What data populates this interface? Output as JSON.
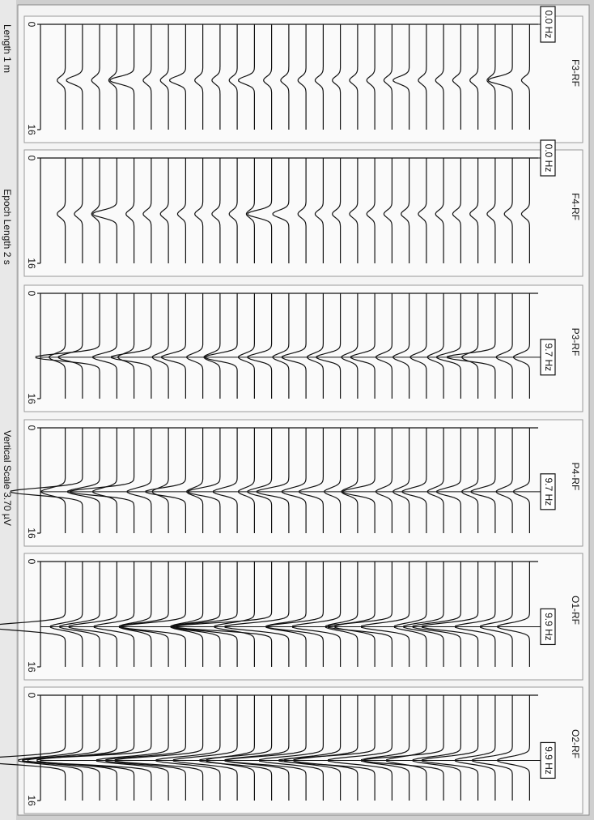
{
  "footer": {
    "length": "Length 1 m",
    "epoch": "Epoch Length 2 s",
    "scale": "Vertical Scale 3.70 µV"
  },
  "axis": {
    "freq_range": [
      0,
      16
    ],
    "ticks": [
      0,
      16
    ]
  },
  "panels": [
    {
      "channel": "F3-RF",
      "marker": {
        "value": 0,
        "label": "0.0 Hz"
      },
      "spectral_peak_hz": 8.5,
      "amplitudes": [
        1,
        2,
        1,
        1,
        3,
        1,
        1,
        2,
        1,
        1,
        1,
        2,
        1,
        1,
        1,
        1,
        1,
        1,
        1,
        1,
        2,
        1,
        1,
        1,
        1,
        1,
        3,
        1
      ]
    },
    {
      "channel": "F4-RF",
      "marker": {
        "value": 0,
        "label": "0.0 Hz"
      },
      "spectral_peak_hz": 8.5,
      "amplitudes": [
        1,
        1,
        1,
        3,
        1,
        1,
        1,
        1,
        1,
        1,
        1,
        1,
        3,
        2,
        1,
        1,
        1,
        1,
        1,
        1,
        1,
        1,
        1,
        1,
        1,
        1,
        1,
        1
      ]
    },
    {
      "channel": "P3-RF",
      "marker": {
        "value": 9.7,
        "label": "9.7 Hz"
      },
      "spectral_peak_hz": 9.7,
      "amplitudes": [
        2,
        3,
        8,
        3,
        2,
        5,
        2,
        3,
        2,
        2,
        4,
        2,
        3,
        2,
        3,
        2,
        3,
        2,
        3,
        2,
        2,
        2,
        2,
        3,
        2,
        6,
        2,
        2
      ]
    },
    {
      "channel": "P4-RF",
      "marker": {
        "value": 9.7,
        "label": "9.7 Hz"
      },
      "spectral_peak_hz": 9.7,
      "amplitudes": [
        3,
        9,
        4,
        3,
        8,
        3,
        2,
        5,
        2,
        4,
        3,
        2,
        3,
        4,
        3,
        3,
        2,
        2,
        4,
        2,
        2,
        3,
        2,
        3,
        2,
        3,
        2,
        2
      ]
    },
    {
      "channel": "O1-RF",
      "marker": {
        "value": 9.9,
        "label": "9.9 Hz"
      },
      "spectral_peak_hz": 9.9,
      "amplitudes": [
        10,
        4,
        5,
        6,
        5,
        4,
        6,
        8,
        4,
        6,
        8,
        5,
        12,
        8,
        5,
        7,
        6,
        4,
        5,
        8,
        6,
        4,
        5,
        6,
        7,
        5,
        4,
        4
      ]
    },
    {
      "channel": "O2-RF",
      "marker": {
        "value": 9.9,
        "label": "9.9 Hz"
      },
      "spectral_peak_hz": 9.9,
      "amplitudes": [
        12,
        8,
        9,
        10,
        14,
        16,
        9,
        10,
        11,
        8,
        8,
        6,
        9,
        8,
        10,
        8,
        7,
        8,
        12,
        8,
        6,
        5,
        10,
        6,
        7,
        5,
        5,
        4
      ]
    }
  ]
}
